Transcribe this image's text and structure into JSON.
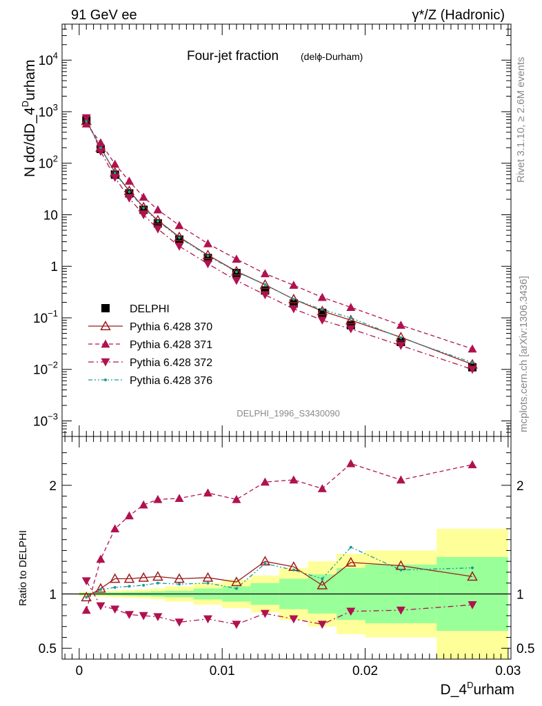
{
  "header": {
    "left": "91 GeV ee",
    "right": "γ*/Z (Hadronic)"
  },
  "side": {
    "rivet": "Rivet 3.1.10, ≥ 2.6M events",
    "mcplots": "mcplots.cern.ch [arXiv:1306.3436]"
  },
  "chart_data": [
    {
      "type": "scatter",
      "panel": "main",
      "title": "Four-jet fraction",
      "subtitle": "(delϕ-Durham)",
      "xlabel": "D_4^Durham",
      "ylabel": "N dσ/dD_4^Durham",
      "yscale": "log",
      "ylim": [
        0.0005,
        50000
      ],
      "xlim": [
        -0.0012,
        0.0302
      ],
      "y_ticks": [
        "10^-3",
        "10^-2",
        "10^-1",
        "1",
        "10",
        "10^2",
        "10^3",
        "10^4"
      ],
      "watermark": "DELPHI_1996_S3430090",
      "legend_position": "bottom-left",
      "x": [
        0.0005,
        0.0015,
        0.0025,
        0.0035,
        0.0045,
        0.0055,
        0.007,
        0.009,
        0.011,
        0.013,
        0.015,
        0.017,
        0.019,
        0.0225,
        0.0275
      ],
      "series": [
        {
          "name": "DELPHI",
          "color": "#000000",
          "marker": "square",
          "values": [
            680,
            190,
            60,
            26,
            12.5,
            6.8,
            3.3,
            1.45,
            0.74,
            0.34,
            0.19,
            0.125,
            0.072,
            0.034,
            0.011
          ]
        },
        {
          "name": "Pythia 6.428 370",
          "color": "#9b1c1c",
          "marker": "triangle-open",
          "line": "solid",
          "values": [
            660,
            200,
            66,
            29,
            14,
            7.8,
            3.7,
            1.65,
            0.8,
            0.44,
            0.23,
            0.135,
            0.09,
            0.042,
            0.0125
          ]
        },
        {
          "name": "Pythia 6.428 371",
          "color": "#b0124f",
          "marker": "triangle-up",
          "line": "dashed",
          "values": [
            580,
            250,
            96,
            45,
            22,
            12.5,
            6.2,
            2.75,
            1.38,
            0.72,
            0.43,
            0.25,
            0.16,
            0.072,
            0.025
          ]
        },
        {
          "name": "Pythia 6.428 372",
          "color": "#b0124f",
          "marker": "triangle-down",
          "line": "dashdot",
          "values": [
            760,
            170,
            53,
            21,
            10,
            5.3,
            2.45,
            1.12,
            0.53,
            0.28,
            0.15,
            0.09,
            0.061,
            0.029,
            0.01
          ]
        },
        {
          "name": "Pythia 6.428 376",
          "color": "#1a9a9a",
          "marker": "dot",
          "line": "dashdotdot",
          "values": [
            650,
            200,
            65,
            28,
            13.5,
            7.5,
            3.6,
            1.6,
            0.78,
            0.44,
            0.23,
            0.145,
            0.1,
            0.041,
            0.0135
          ]
        }
      ]
    },
    {
      "type": "line",
      "panel": "ratio",
      "ylabel": "Ratio to DELPHI",
      "ylim": [
        0.4,
        2.45
      ],
      "xlim": [
        -0.0012,
        0.0302
      ],
      "x_ticks": [
        "0",
        "0.01",
        "0.02",
        "0.03"
      ],
      "y_ticks": [
        "0.5",
        "1",
        "2"
      ],
      "bins": [
        0,
        0.001,
        0.002,
        0.003,
        0.004,
        0.005,
        0.006,
        0.008,
        0.01,
        0.012,
        0.014,
        0.016,
        0.018,
        0.02,
        0.025,
        0.03
      ],
      "band_yellow": [
        0.02,
        0.025,
        0.03,
        0.035,
        0.04,
        0.05,
        0.07,
        0.1,
        0.13,
        0.17,
        0.24,
        0.3,
        0.37,
        0.4,
        0.6
      ],
      "band_green": [
        0.01,
        0.012,
        0.015,
        0.018,
        0.02,
        0.025,
        0.03,
        0.05,
        0.07,
        0.1,
        0.14,
        0.18,
        0.24,
        0.27,
        0.34
      ],
      "x": [
        0.0005,
        0.0015,
        0.0025,
        0.0035,
        0.0045,
        0.0055,
        0.007,
        0.009,
        0.011,
        0.013,
        0.015,
        0.017,
        0.019,
        0.0225,
        0.0275
      ],
      "series": [
        {
          "name": "Pythia 6.428 370",
          "color": "#9b1c1c",
          "marker": "triangle-open",
          "line": "solid",
          "values": [
            0.97,
            1.05,
            1.14,
            1.14,
            1.15,
            1.16,
            1.14,
            1.15,
            1.11,
            1.3,
            1.25,
            1.08,
            1.29,
            1.26,
            1.16
          ]
        },
        {
          "name": "Pythia 6.428 371",
          "color": "#b0124f",
          "marker": "triangle-up",
          "line": "dashed",
          "values": [
            0.85,
            1.32,
            1.6,
            1.72,
            1.82,
            1.87,
            1.88,
            1.93,
            1.87,
            2.03,
            2.05,
            1.97,
            2.2,
            2.05,
            2.19
          ]
        },
        {
          "name": "Pythia 6.428 372",
          "color": "#b0124f",
          "marker": "triangle-down",
          "line": "dashdot",
          "values": [
            1.12,
            0.89,
            0.86,
            0.81,
            0.8,
            0.79,
            0.74,
            0.77,
            0.72,
            0.82,
            0.77,
            0.72,
            0.84,
            0.85,
            0.9
          ]
        },
        {
          "name": "Pythia 6.428 376",
          "color": "#1a9a9a",
          "marker": "dot",
          "line": "dashdotdot",
          "values": [
            0.97,
            1.04,
            1.06,
            1.07,
            1.08,
            1.1,
            1.09,
            1.1,
            1.05,
            1.28,
            1.22,
            1.14,
            1.43,
            1.22,
            1.24
          ]
        }
      ]
    }
  ]
}
